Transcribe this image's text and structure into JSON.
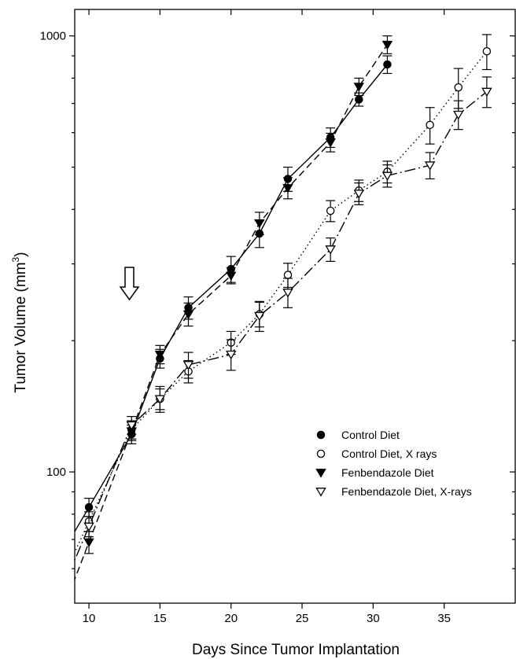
{
  "chart_data": {
    "type": "line",
    "title": "",
    "xlabel": "Days Since Tumor Implantation",
    "ylabel_main": "Tumor Volume (mm",
    "ylabel_sup": "3",
    "ylabel_close": ")",
    "xlim": [
      9,
      40
    ],
    "ylim": [
      50,
      1150
    ],
    "yscale": "log",
    "x_ticks": [
      10,
      15,
      20,
      25,
      30,
      35
    ],
    "x_tick_labels": [
      "10",
      "15",
      "20",
      "25",
      "30",
      "35"
    ],
    "y_labeled_ticks": [
      100,
      1000
    ],
    "y_tick_labels": [
      "100",
      "1000"
    ],
    "y_minor_ticks": [
      60,
      70,
      80,
      90,
      200,
      300,
      400,
      500,
      600,
      700,
      800,
      900
    ],
    "legend_position": "lower-right",
    "annotation": "down-arrow at day 13 (treatment start)",
    "series": [
      {
        "name": "Control Diet",
        "marker": "filled-circle",
        "line": "solid",
        "x": [
          10,
          13,
          15,
          17,
          20,
          22,
          24,
          27,
          29,
          31
        ],
        "y": [
          83,
          122,
          182,
          238,
          292,
          352,
          470,
          585,
          715,
          860
        ],
        "err": [
          4,
          6,
          9,
          14,
          20,
          25,
          30,
          30,
          25,
          40
        ]
      },
      {
        "name": "Control Diet, X rays",
        "marker": "open-circle",
        "line": "dotted",
        "x": [
          10,
          13,
          15,
          17,
          20,
          22,
          24,
          27,
          29,
          31,
          34,
          36,
          38
        ],
        "y": [
          77,
          125,
          147,
          170,
          198,
          230,
          283,
          397,
          442,
          488,
          625,
          762,
          922
        ],
        "err": [
          4,
          6,
          8,
          10,
          12,
          15,
          18,
          22,
          25,
          28,
          60,
          80,
          85
        ]
      },
      {
        "name": "Fenbendazole Diet",
        "marker": "filled-triangle-down",
        "line": "dashed",
        "x": [
          10,
          13,
          15,
          17,
          20,
          22,
          24,
          27,
          29,
          31
        ],
        "y": [
          69,
          124,
          186,
          230,
          282,
          372,
          448,
          570,
          765,
          955
        ],
        "err": [
          4,
          6,
          9,
          14,
          12,
          22,
          25,
          28,
          35,
          45
        ]
      },
      {
        "name": "Fenbendazole Diet, X-rays",
        "marker": "open-triangle-down",
        "line": "dashdot",
        "x": [
          10,
          13,
          15,
          17,
          20,
          22,
          24,
          27,
          29,
          31,
          34,
          36,
          38
        ],
        "y": [
          75,
          128,
          147,
          176,
          186,
          228,
          258,
          324,
          435,
          478,
          505,
          660,
          745
        ],
        "err": [
          4,
          6,
          10,
          12,
          15,
          18,
          20,
          20,
          25,
          28,
          35,
          50,
          60
        ]
      }
    ]
  }
}
